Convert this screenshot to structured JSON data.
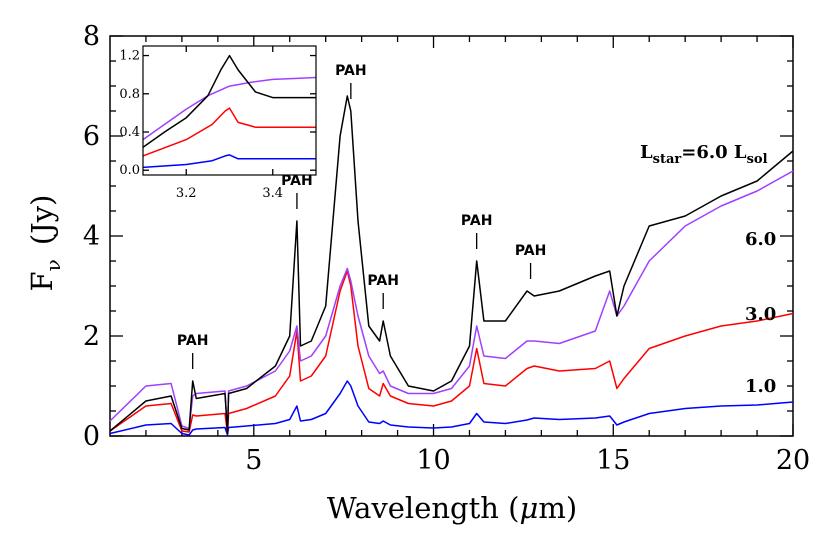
{
  "chart_data": [
    {
      "type": "line",
      "xlabel_main": "Wavelength (",
      "xlabel_mu": "μ",
      "xlabel_unit": "m)",
      "ylabel_main": "F",
      "ylabel_sub": "ν",
      "ylabel_unit": "(Jy)",
      "xlim": [
        1,
        20
      ],
      "ylim": [
        0,
        8
      ],
      "xticks": [
        "5",
        "10",
        "15",
        "20"
      ],
      "yticks": [
        "0",
        "2",
        "4",
        "6",
        "8"
      ],
      "grid": false,
      "series": [
        {
          "label": "1.0",
          "color": "#0000ff",
          "x": [
            1,
            2,
            2.7,
            3.0,
            3.2,
            3.3,
            3.4,
            4.2,
            4.27,
            4.3,
            4.8,
            5.6,
            6.0,
            6.2,
            6.3,
            6.6,
            7.0,
            7.4,
            7.6,
            7.7,
            7.9,
            8.2,
            8.5,
            8.6,
            8.8,
            9.3,
            10,
            10.5,
            11.0,
            11.2,
            11.4,
            12,
            12.6,
            12.8,
            13.5,
            14.5,
            14.9,
            15.1,
            15.3,
            16,
            17,
            18,
            19,
            20
          ],
          "y": [
            0.05,
            0.22,
            0.25,
            0.05,
            0.02,
            0.12,
            0.14,
            0.17,
            0.02,
            0.17,
            0.2,
            0.25,
            0.33,
            0.6,
            0.3,
            0.33,
            0.45,
            0.85,
            1.1,
            1.0,
            0.6,
            0.28,
            0.25,
            0.3,
            0.22,
            0.18,
            0.16,
            0.18,
            0.25,
            0.45,
            0.28,
            0.25,
            0.32,
            0.36,
            0.33,
            0.36,
            0.4,
            0.22,
            0.28,
            0.45,
            0.55,
            0.6,
            0.62,
            0.68
          ]
        },
        {
          "label": "3.0",
          "color": "#ff0000",
          "x": [
            1,
            2,
            2.7,
            3.0,
            3.2,
            3.3,
            3.4,
            4.2,
            4.27,
            4.3,
            4.8,
            5.6,
            6.0,
            6.2,
            6.3,
            6.6,
            7.0,
            7.4,
            7.6,
            7.7,
            7.9,
            8.2,
            8.5,
            8.6,
            8.8,
            9.3,
            10,
            10.5,
            11.0,
            11.2,
            11.4,
            12,
            12.6,
            12.8,
            13.5,
            14.5,
            14.9,
            15.1,
            15.3,
            16,
            17,
            18,
            19,
            20
          ],
          "y": [
            0.1,
            0.6,
            0.65,
            0.1,
            0.08,
            0.42,
            0.4,
            0.45,
            0.05,
            0.45,
            0.55,
            0.8,
            1.2,
            2.1,
            1.1,
            1.2,
            1.6,
            2.9,
            3.3,
            3.0,
            1.8,
            0.95,
            0.8,
            1.05,
            0.8,
            0.65,
            0.6,
            0.7,
            1.0,
            1.75,
            1.05,
            1.0,
            1.35,
            1.4,
            1.3,
            1.35,
            1.5,
            0.95,
            1.15,
            1.75,
            2.0,
            2.2,
            2.3,
            2.45
          ]
        },
        {
          "label": "6.0",
          "color": "#a040ff",
          "x": [
            1,
            2,
            2.7,
            3.0,
            3.2,
            3.3,
            3.4,
            4.2,
            4.27,
            4.3,
            4.8,
            5.6,
            6.0,
            6.2,
            6.3,
            6.6,
            7.0,
            7.4,
            7.6,
            7.7,
            7.9,
            8.2,
            8.5,
            8.6,
            8.8,
            9.3,
            10,
            10.5,
            11.0,
            11.2,
            11.4,
            12,
            12.6,
            12.8,
            13.5,
            14.5,
            14.9,
            15.1,
            15.3,
            16,
            17,
            18,
            19,
            20
          ],
          "y": [
            0.3,
            1.0,
            1.05,
            0.2,
            0.15,
            0.8,
            0.85,
            0.9,
            0.05,
            0.9,
            1.0,
            1.3,
            1.7,
            2.2,
            1.5,
            1.6,
            2.0,
            3.0,
            3.35,
            3.1,
            2.4,
            1.6,
            1.25,
            1.3,
            1.0,
            0.85,
            0.85,
            0.95,
            1.4,
            2.2,
            1.6,
            1.55,
            1.9,
            1.9,
            1.85,
            2.1,
            2.9,
            2.4,
            2.6,
            3.5,
            4.2,
            4.6,
            4.9,
            5.3
          ]
        },
        {
          "label": "",
          "color": "#000000",
          "x": [
            1,
            2,
            2.7,
            3.0,
            3.2,
            3.3,
            3.4,
            4.2,
            4.27,
            4.3,
            4.8,
            5.6,
            6.0,
            6.2,
            6.3,
            6.6,
            7.0,
            7.4,
            7.6,
            7.7,
            7.9,
            8.2,
            8.5,
            8.6,
            8.8,
            9.3,
            10,
            10.5,
            11.0,
            11.2,
            11.4,
            12,
            12.6,
            12.8,
            13.5,
            14.5,
            14.9,
            15.1,
            15.3,
            16,
            17,
            18,
            19,
            20
          ],
          "y": [
            0.1,
            0.7,
            0.8,
            0.15,
            0.12,
            1.1,
            0.75,
            0.85,
            0.05,
            0.85,
            0.95,
            1.4,
            2.0,
            4.3,
            1.8,
            1.9,
            2.6,
            6.0,
            6.8,
            6.5,
            4.3,
            2.2,
            1.9,
            2.3,
            1.6,
            1.0,
            0.9,
            1.1,
            1.8,
            3.5,
            2.3,
            2.3,
            2.9,
            2.8,
            2.9,
            3.2,
            3.3,
            2.4,
            3.0,
            4.2,
            4.4,
            4.8,
            5.1,
            5.7
          ]
        }
      ],
      "annotations": {
        "pah": [
          {
            "text": "PAH",
            "x": 3.3
          },
          {
            "text": "PAH",
            "x": 6.2
          },
          {
            "text": "PAH",
            "x": 7.7
          },
          {
            "text": "PAH",
            "x": 8.6
          },
          {
            "text": "PAH",
            "x": 11.2
          },
          {
            "text": "PAH",
            "x": 12.7
          }
        ],
        "lstar_prefix": "L",
        "lstar_sub": "star",
        "lstar_mid": "=6.0  L",
        "lsol_sub": "sol"
      }
    },
    {
      "type": "line",
      "xlim": [
        3.1,
        3.5
      ],
      "ylim": [
        -0.05,
        1.3
      ],
      "xticks": [
        "3.2",
        "3.4"
      ],
      "yticks": [
        "0.0",
        "0.4",
        "0.8",
        "1.2"
      ],
      "series": [
        {
          "color": "#0000ff",
          "x": [
            3.1,
            3.2,
            3.26,
            3.29,
            3.3,
            3.32,
            3.36,
            3.42,
            3.5
          ],
          "y": [
            0.03,
            0.06,
            0.1,
            0.15,
            0.16,
            0.12,
            0.12,
            0.12,
            0.12
          ]
        },
        {
          "color": "#ff0000",
          "x": [
            3.1,
            3.2,
            3.26,
            3.29,
            3.3,
            3.32,
            3.36,
            3.42,
            3.5
          ],
          "y": [
            0.15,
            0.32,
            0.48,
            0.62,
            0.65,
            0.5,
            0.45,
            0.45,
            0.45
          ]
        },
        {
          "color": "#a040ff",
          "x": [
            3.1,
            3.15,
            3.2,
            3.25,
            3.3,
            3.35,
            3.4,
            3.45,
            3.5
          ],
          "y": [
            0.32,
            0.48,
            0.64,
            0.78,
            0.88,
            0.92,
            0.95,
            0.96,
            0.97
          ]
        },
        {
          "color": "#000000",
          "x": [
            3.1,
            3.15,
            3.2,
            3.25,
            3.28,
            3.3,
            3.32,
            3.36,
            3.4,
            3.45,
            3.5
          ],
          "y": [
            0.24,
            0.4,
            0.55,
            0.78,
            1.05,
            1.2,
            1.05,
            0.82,
            0.76,
            0.76,
            0.76
          ]
        }
      ]
    }
  ]
}
